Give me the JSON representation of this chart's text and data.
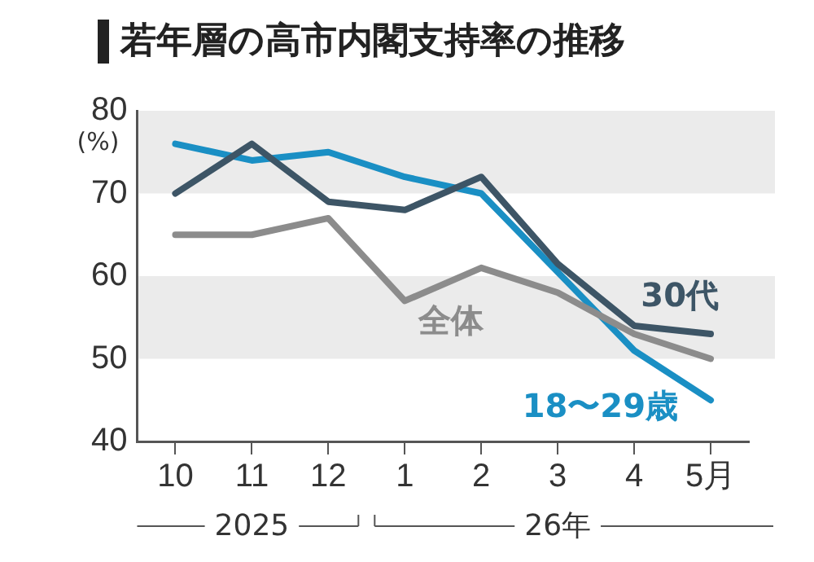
{
  "chart_data": {
    "type": "line",
    "title": "若年層の高市内閣支持率の推移",
    "ylabel": "(%)",
    "categories": [
      "10",
      "11",
      "12",
      "1",
      "2",
      "3",
      "4",
      "5月"
    ],
    "series": [
      {
        "name": "全体",
        "color": "#8c8c8c",
        "values": [
          65,
          65,
          67,
          57,
          61,
          58,
          53,
          50
        ]
      },
      {
        "name": "30代",
        "color": "#3d5566",
        "values": [
          70,
          76,
          69,
          68,
          72,
          61.5,
          54,
          53
        ]
      },
      {
        "name": "18〜29歳",
        "color": "#1a8fc4",
        "values": [
          76,
          74,
          75,
          72,
          70,
          60.5,
          51,
          45
        ]
      }
    ],
    "ylim": [
      40,
      80
    ],
    "yticks": [
      40,
      50,
      60,
      70,
      80
    ],
    "bands": [
      {
        "axis": "y",
        "from": 70,
        "to": 80,
        "color": "#ebebeb"
      },
      {
        "axis": "y",
        "from": 50,
        "to": 60,
        "color": "#ebebeb"
      }
    ],
    "annotations": [
      "2025",
      "26年"
    ],
    "grid": false,
    "legend": false,
    "marker": "none",
    "line_style": "solid"
  }
}
